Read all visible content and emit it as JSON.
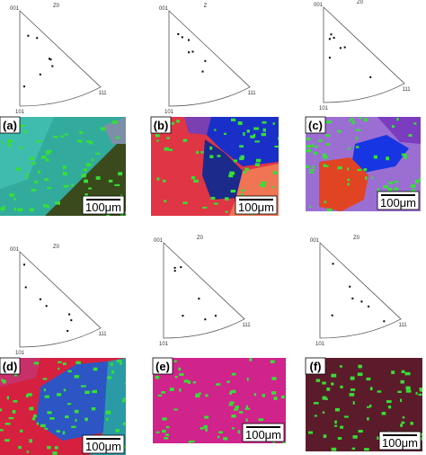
{
  "panels": [
    {
      "label": "(a)",
      "pole_figure": {
        "axis": "Z0",
        "corners": [
          "001",
          "101",
          "111"
        ]
      },
      "scale_bar": "100μm"
    },
    {
      "label": "(b)",
      "pole_figure": {
        "axis": "Z",
        "corners": [
          "001",
          "101",
          "111"
        ]
      },
      "scale_bar": "100μm"
    },
    {
      "label": "(c)",
      "pole_figure": {
        "axis": "Z0",
        "corners": [
          "001",
          "101",
          "111"
        ]
      },
      "scale_bar": "100μm"
    },
    {
      "label": "(d)",
      "pole_figure": {
        "axis": "Z0",
        "corners": [
          "001",
          "101",
          "111"
        ]
      },
      "scale_bar": "100μm"
    },
    {
      "label": "(e)",
      "pole_figure": {
        "axis": "Z0",
        "corners": [
          "001",
          "101",
          "111"
        ]
      },
      "scale_bar": "100μm"
    },
    {
      "label": "(f)",
      "pole_figure": {
        "axis": "Z0",
        "corners": [
          "001",
          "101",
          "111"
        ]
      },
      "scale_bar": "100μm"
    }
  ]
}
